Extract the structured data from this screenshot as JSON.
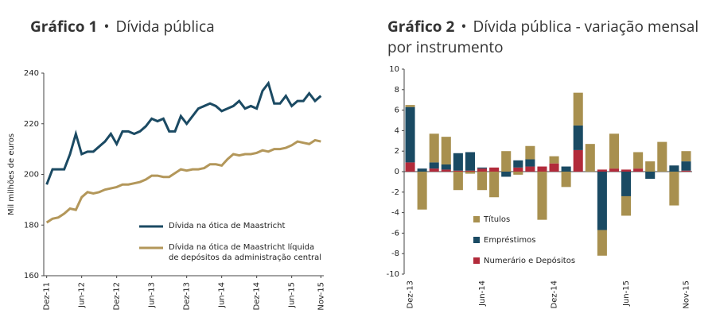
{
  "chart_data": [
    {
      "type": "line",
      "title_label": "Gráfico 1",
      "title": "Dívida pública",
      "ylabel": "Mil milhões de euros",
      "categories": [
        "Dez-11",
        null,
        null,
        null,
        null,
        null,
        "Jun-12",
        null,
        null,
        null,
        null,
        null,
        "Dez-12",
        null,
        null,
        null,
        null,
        null,
        "Jun-13",
        null,
        null,
        null,
        null,
        null,
        "Dez-13",
        null,
        null,
        null,
        null,
        null,
        "Jun-14",
        null,
        null,
        null,
        null,
        null,
        "Dez-14",
        null,
        null,
        null,
        null,
        null,
        "Jun-15",
        null,
        null,
        null,
        null,
        "Nov-15"
      ],
      "series": [
        {
          "name": "Dívida na ótica de Maastricht",
          "color": "#1b4a63",
          "values": [
            196,
            202,
            202,
            202,
            208,
            216,
            208,
            209,
            209,
            211,
            213,
            216,
            212,
            217,
            217,
            216,
            217,
            219,
            222,
            221,
            222,
            217,
            217,
            223,
            220,
            223,
            226,
            227,
            228,
            227,
            225,
            226,
            227,
            229,
            226,
            227,
            226,
            233,
            236,
            228,
            228,
            231,
            227,
            229,
            229,
            232,
            229,
            231
          ]
        },
        {
          "name": "Dívida na ótica de Maastricht líquida de depósitos da administração central",
          "color": "#b3975a",
          "values": [
            181,
            182.5,
            183,
            184.5,
            186.5,
            186,
            191,
            193,
            192.5,
            193,
            194,
            194.5,
            195,
            196,
            196,
            196.5,
            197,
            198,
            199.5,
            199.5,
            199,
            199,
            200.5,
            202,
            201.5,
            202,
            202,
            202.5,
            204,
            204,
            203.5,
            206,
            208,
            207.5,
            208,
            208,
            208.5,
            209.5,
            209,
            210,
            210,
            210.5,
            211.5,
            213,
            212.5,
            212,
            213.5,
            213
          ]
        }
      ],
      "ylim": [
        160,
        240
      ],
      "yticks": [
        160,
        180,
        200,
        220,
        240
      ],
      "legend": "lower-right"
    },
    {
      "type": "stacked-bar",
      "title_label": "Gráfico 2",
      "title": "Dívida pública - variação mensal por instrumento",
      "categories": [
        "Dez-13",
        null,
        null,
        null,
        null,
        null,
        "Jun-14",
        null,
        null,
        null,
        null,
        null,
        "Dez-14",
        null,
        null,
        null,
        null,
        null,
        "Jun-15",
        null,
        null,
        null,
        null,
        "Nov-15"
      ],
      "series": [
        {
          "name": "Numerário e Depósitos",
          "color": "#b22a3a",
          "values": [
            0.9,
            0,
            0.3,
            0.2,
            0.1,
            0.1,
            0.3,
            0.4,
            0,
            0.4,
            0.5,
            0.5,
            0.8,
            0,
            2.1,
            0,
            0.2,
            0.3,
            0.2,
            0.3,
            0,
            0,
            0,
            0.1
          ]
        },
        {
          "name": "Empréstimos",
          "color": "#1a4a63",
          "values": [
            5.4,
            0.3,
            0.6,
            0.5,
            1.7,
            1.8,
            0.1,
            0,
            -0.5,
            0.7,
            0.7,
            0,
            0,
            0.5,
            2.4,
            0,
            -5.7,
            0,
            -2.4,
            0,
            -0.7,
            0,
            0.6,
            0.9
          ]
        },
        {
          "name": "Títulos",
          "color": "#a8904f",
          "values": [
            0.2,
            -3.7,
            2.8,
            2.7,
            -1.8,
            -0.2,
            -1.8,
            -2.5,
            2.0,
            -0.3,
            1.3,
            -4.7,
            0.7,
            -1.5,
            3.2,
            2.7,
            -2.5,
            3.4,
            -1.9,
            1.6,
            1.0,
            2.9,
            -3.3,
            1.0
          ]
        }
      ],
      "ylim": [
        -10,
        10
      ],
      "yticks": [
        -10,
        -8,
        -6,
        -4,
        -2,
        0,
        2,
        4,
        6,
        8,
        10
      ],
      "legend": "lower-left"
    }
  ]
}
